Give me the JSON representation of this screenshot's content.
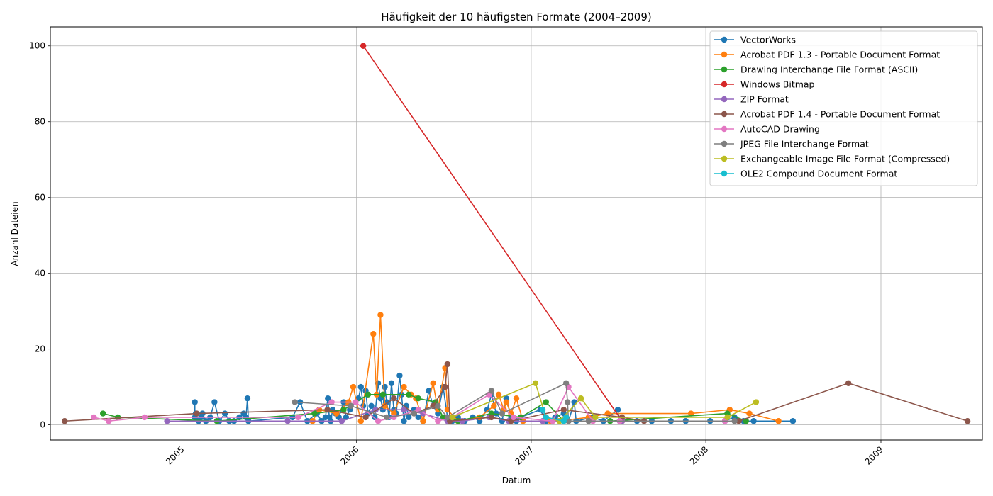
{
  "chart_data": {
    "type": "line",
    "title": "Häufigkeit der 10 häufigsten Formate (2004–2009)",
    "xlabel": "Datum",
    "ylabel": "Anzahl Dateien",
    "x_axis_type": "date",
    "xlim": [
      "2004-04-01",
      "2009-08-01"
    ],
    "ylim": [
      -4,
      105
    ],
    "x_ticks": [
      {
        "date": "2005-01-01",
        "label": "2005"
      },
      {
        "date": "2006-01-01",
        "label": "2006"
      },
      {
        "date": "2007-01-01",
        "label": "2007"
      },
      {
        "date": "2008-01-01",
        "label": "2008"
      },
      {
        "date": "2009-01-01",
        "label": "2009"
      }
    ],
    "x_tick_rotation": 45,
    "y_ticks": [
      0,
      20,
      40,
      60,
      80,
      100
    ],
    "grid": true,
    "legend_position": "top-right",
    "series": [
      {
        "name": "VectorWorks",
        "color": "#1f77b4",
        "points": [
          [
            "2005-01-28",
            6
          ],
          [
            "2005-01-28",
            2
          ],
          [
            "2005-01-30",
            3
          ],
          [
            "2005-02-05",
            1
          ],
          [
            "2005-02-10",
            2
          ],
          [
            "2005-02-13",
            3
          ],
          [
            "2005-02-20",
            1
          ],
          [
            "2005-03-01",
            2
          ],
          [
            "2005-03-10",
            6
          ],
          [
            "2005-03-20",
            1
          ],
          [
            "2005-04-01",
            3
          ],
          [
            "2005-04-10",
            1
          ],
          [
            "2005-04-20",
            1
          ],
          [
            "2005-05-01",
            2
          ],
          [
            "2005-05-10",
            3
          ],
          [
            "2005-05-15",
            2
          ],
          [
            "2005-05-18",
            7
          ],
          [
            "2005-05-20",
            1
          ],
          [
            "2005-08-20",
            2
          ],
          [
            "2005-09-05",
            6
          ],
          [
            "2005-09-20",
            1
          ],
          [
            "2005-10-10",
            3
          ],
          [
            "2005-10-20",
            1
          ],
          [
            "2005-10-28",
            2
          ],
          [
            "2005-11-02",
            7
          ],
          [
            "2005-11-05",
            2
          ],
          [
            "2005-11-08",
            1
          ],
          [
            "2005-11-12",
            4
          ],
          [
            "2005-11-18",
            3
          ],
          [
            "2005-11-25",
            2
          ],
          [
            "2005-12-05",
            6
          ],
          [
            "2005-12-10",
            2
          ],
          [
            "2005-12-18",
            4
          ],
          [
            "2006-01-05",
            7
          ],
          [
            "2006-01-10",
            10
          ],
          [
            "2006-01-15",
            5
          ],
          [
            "2006-01-20",
            9
          ],
          [
            "2006-01-25",
            3
          ],
          [
            "2006-02-01",
            5
          ],
          [
            "2006-02-08",
            2
          ],
          [
            "2006-02-15",
            11
          ],
          [
            "2006-02-20",
            7
          ],
          [
            "2006-02-25",
            4
          ],
          [
            "2006-03-01",
            10
          ],
          [
            "2006-03-05",
            6
          ],
          [
            "2006-03-10",
            2
          ],
          [
            "2006-03-15",
            11
          ],
          [
            "2006-03-20",
            4
          ],
          [
            "2006-03-25",
            3
          ],
          [
            "2006-04-01",
            13
          ],
          [
            "2006-04-05",
            8
          ],
          [
            "2006-04-10",
            1
          ],
          [
            "2006-04-15",
            5
          ],
          [
            "2006-04-20",
            2
          ],
          [
            "2006-05-01",
            4
          ],
          [
            "2006-05-10",
            2
          ],
          [
            "2006-05-20",
            1
          ],
          [
            "2006-06-01",
            9
          ],
          [
            "2006-06-10",
            5
          ],
          [
            "2006-06-20",
            3
          ],
          [
            "2006-07-01",
            10
          ],
          [
            "2006-07-10",
            2
          ],
          [
            "2006-07-20",
            1
          ],
          [
            "2006-08-01",
            2
          ],
          [
            "2006-08-15",
            1
          ],
          [
            "2006-09-01",
            2
          ],
          [
            "2006-09-15",
            1
          ],
          [
            "2006-10-01",
            4
          ],
          [
            "2006-10-10",
            8
          ],
          [
            "2006-10-20",
            3
          ],
          [
            "2006-11-01",
            1
          ],
          [
            "2006-11-10",
            7
          ],
          [
            "2006-11-20",
            2
          ],
          [
            "2006-12-01",
            1
          ],
          [
            "2006-12-10",
            2
          ],
          [
            "2007-01-20",
            4
          ],
          [
            "2007-02-01",
            1
          ],
          [
            "2007-02-20",
            2
          ],
          [
            "2007-03-10",
            3
          ],
          [
            "2007-03-20",
            1
          ],
          [
            "2007-04-01",
            6
          ],
          [
            "2007-04-05",
            1
          ],
          [
            "2007-05-10",
            2
          ],
          [
            "2007-06-01",
            1
          ],
          [
            "2007-07-01",
            4
          ],
          [
            "2007-07-05",
            1
          ],
          [
            "2007-08-10",
            1
          ],
          [
            "2007-09-10",
            1
          ],
          [
            "2007-10-20",
            1
          ],
          [
            "2007-11-20",
            1
          ],
          [
            "2008-01-10",
            1
          ],
          [
            "2008-02-10",
            1
          ],
          [
            "2008-03-01",
            2
          ],
          [
            "2008-03-20",
            1
          ],
          [
            "2008-04-10",
            1
          ],
          [
            "2008-07-01",
            1
          ]
        ]
      },
      {
        "name": "Acrobat PDF 1.3 - Portable Document Format",
        "color": "#ff7f0e",
        "points": [
          [
            "2005-10-01",
            1
          ],
          [
            "2005-10-15",
            4
          ],
          [
            "2005-11-20",
            3
          ],
          [
            "2005-12-15",
            6
          ],
          [
            "2005-12-25",
            10
          ],
          [
            "2006-01-10",
            1
          ],
          [
            "2006-02-05",
            24
          ],
          [
            "2006-02-12",
            8
          ],
          [
            "2006-02-20",
            29
          ],
          [
            "2006-03-01",
            5
          ],
          [
            "2006-03-20",
            3
          ],
          [
            "2006-04-10",
            10
          ],
          [
            "2006-04-25",
            8
          ],
          [
            "2006-05-05",
            7
          ],
          [
            "2006-05-20",
            1
          ],
          [
            "2006-06-10",
            11
          ],
          [
            "2006-06-20",
            4
          ],
          [
            "2006-07-05",
            15
          ],
          [
            "2006-07-10",
            4
          ],
          [
            "2006-08-01",
            1
          ],
          [
            "2006-09-15",
            2
          ],
          [
            "2006-10-15",
            5
          ],
          [
            "2006-10-25",
            8
          ],
          [
            "2006-11-05",
            4
          ],
          [
            "2006-11-10",
            6
          ],
          [
            "2006-11-20",
            3
          ],
          [
            "2006-12-01",
            7
          ],
          [
            "2006-12-15",
            1
          ],
          [
            "2007-02-10",
            1
          ],
          [
            "2007-03-01",
            1
          ],
          [
            "2007-05-01",
            2
          ],
          [
            "2007-06-10",
            3
          ],
          [
            "2007-12-01",
            3
          ],
          [
            "2008-02-20",
            4
          ],
          [
            "2008-04-01",
            3
          ],
          [
            "2008-06-01",
            1
          ]
        ]
      },
      {
        "name": "Drawing Interchange File Format (ASCII)",
        "color": "#2ca02c",
        "points": [
          [
            "2004-07-20",
            3
          ],
          [
            "2004-08-20",
            2
          ],
          [
            "2005-03-15",
            1
          ],
          [
            "2005-10-05",
            3
          ],
          [
            "2005-12-05",
            4
          ],
          [
            "2006-01-25",
            8
          ],
          [
            "2006-02-25",
            8
          ],
          [
            "2006-04-20",
            8
          ],
          [
            "2006-05-10",
            7
          ],
          [
            "2006-06-15",
            6
          ],
          [
            "2006-07-01",
            2
          ],
          [
            "2006-08-01",
            1
          ],
          [
            "2006-10-10",
            3
          ],
          [
            "2006-12-10",
            2
          ],
          [
            "2007-02-01",
            6
          ],
          [
            "2007-03-10",
            1
          ],
          [
            "2007-06-15",
            1
          ],
          [
            "2008-02-15",
            3
          ],
          [
            "2008-03-25",
            1
          ]
        ]
      },
      {
        "name": "Windows Bitmap",
        "color": "#d62728",
        "points": [
          [
            "2006-01-15",
            100
          ],
          [
            "2007-07-10",
            1
          ]
        ]
      },
      {
        "name": "ZIP Format",
        "color": "#9467bd",
        "points": [
          [
            "2004-12-01",
            1
          ],
          [
            "2005-08-10",
            1
          ],
          [
            "2005-12-01",
            1
          ],
          [
            "2006-02-10",
            4
          ],
          [
            "2006-04-10",
            4
          ],
          [
            "2006-05-20",
            3
          ],
          [
            "2006-07-10",
            1
          ],
          [
            "2006-08-10",
            1
          ],
          [
            "2006-10-05",
            2
          ],
          [
            "2006-11-15",
            1
          ],
          [
            "2007-01-25",
            1
          ],
          [
            "2007-03-10",
            1
          ],
          [
            "2007-07-10",
            1
          ],
          [
            "2008-02-10",
            1
          ]
        ]
      },
      {
        "name": "Acrobat PDF 1.4 - Portable Document Format",
        "color": "#8c564b",
        "points": [
          [
            "2004-05-01",
            1
          ],
          [
            "2005-02-01",
            3
          ],
          [
            "2005-11-01",
            4
          ],
          [
            "2006-01-20",
            2
          ],
          [
            "2006-03-20",
            7
          ],
          [
            "2006-05-01",
            3
          ],
          [
            "2006-06-10",
            5
          ],
          [
            "2006-07-05",
            10
          ],
          [
            "2006-07-10",
            16
          ],
          [
            "2006-07-15",
            1
          ],
          [
            "2006-10-10",
            2
          ],
          [
            "2006-11-20",
            1
          ],
          [
            "2007-03-10",
            4
          ],
          [
            "2007-07-10",
            2
          ],
          [
            "2007-08-25",
            1
          ],
          [
            "2008-03-10",
            1
          ],
          [
            "2008-10-25",
            11
          ],
          [
            "2009-07-01",
            1
          ]
        ]
      },
      {
        "name": "AutoCAD Drawing",
        "color": "#e377c2",
        "points": [
          [
            "2004-07-01",
            2
          ],
          [
            "2004-08-01",
            1
          ],
          [
            "2004-10-15",
            2
          ],
          [
            "2005-09-01",
            2
          ],
          [
            "2005-11-10",
            6
          ],
          [
            "2005-12-30",
            6
          ],
          [
            "2006-02-15",
            1
          ],
          [
            "2006-03-20",
            2
          ],
          [
            "2006-05-10",
            4
          ],
          [
            "2006-06-20",
            1
          ],
          [
            "2006-07-20",
            2
          ],
          [
            "2006-10-05",
            8
          ],
          [
            "2006-11-25",
            2
          ],
          [
            "2007-02-15",
            1
          ],
          [
            "2007-03-20",
            10
          ],
          [
            "2007-05-10",
            1
          ],
          [
            "2007-07-05",
            1
          ],
          [
            "2008-02-10",
            1
          ]
        ]
      },
      {
        "name": "JPEG File Interchange Format",
        "color": "#7f7f7f",
        "points": [
          [
            "2005-08-25",
            6
          ],
          [
            "2005-12-20",
            5
          ],
          [
            "2006-03-05",
            2
          ],
          [
            "2006-05-01",
            3
          ],
          [
            "2006-06-20",
            5
          ],
          [
            "2006-07-10",
            2
          ],
          [
            "2006-10-10",
            9
          ],
          [
            "2006-11-01",
            3
          ],
          [
            "2007-03-15",
            11
          ],
          [
            "2007-03-18",
            6
          ],
          [
            "2007-03-20",
            1
          ],
          [
            "2007-05-01",
            1
          ],
          [
            "2008-03-01",
            1
          ]
        ]
      },
      {
        "name": "Exchangeable Image File Format (Compressed)",
        "color": "#bcbd22",
        "points": [
          [
            "2006-07-20",
            2
          ],
          [
            "2007-01-10",
            11
          ],
          [
            "2007-02-01",
            2
          ],
          [
            "2007-03-01",
            1
          ],
          [
            "2007-04-15",
            7
          ],
          [
            "2007-05-15",
            2
          ],
          [
            "2008-02-15",
            2
          ],
          [
            "2008-04-15",
            6
          ]
        ]
      },
      {
        "name": "OLE2 Compound Document Format",
        "color": "#17becf",
        "points": [
          [
            "2007-01-25",
            4
          ],
          [
            "2007-02-01",
            2
          ],
          [
            "2007-03-10",
            1
          ],
          [
            "2007-03-15",
            2
          ]
        ]
      }
    ]
  }
}
